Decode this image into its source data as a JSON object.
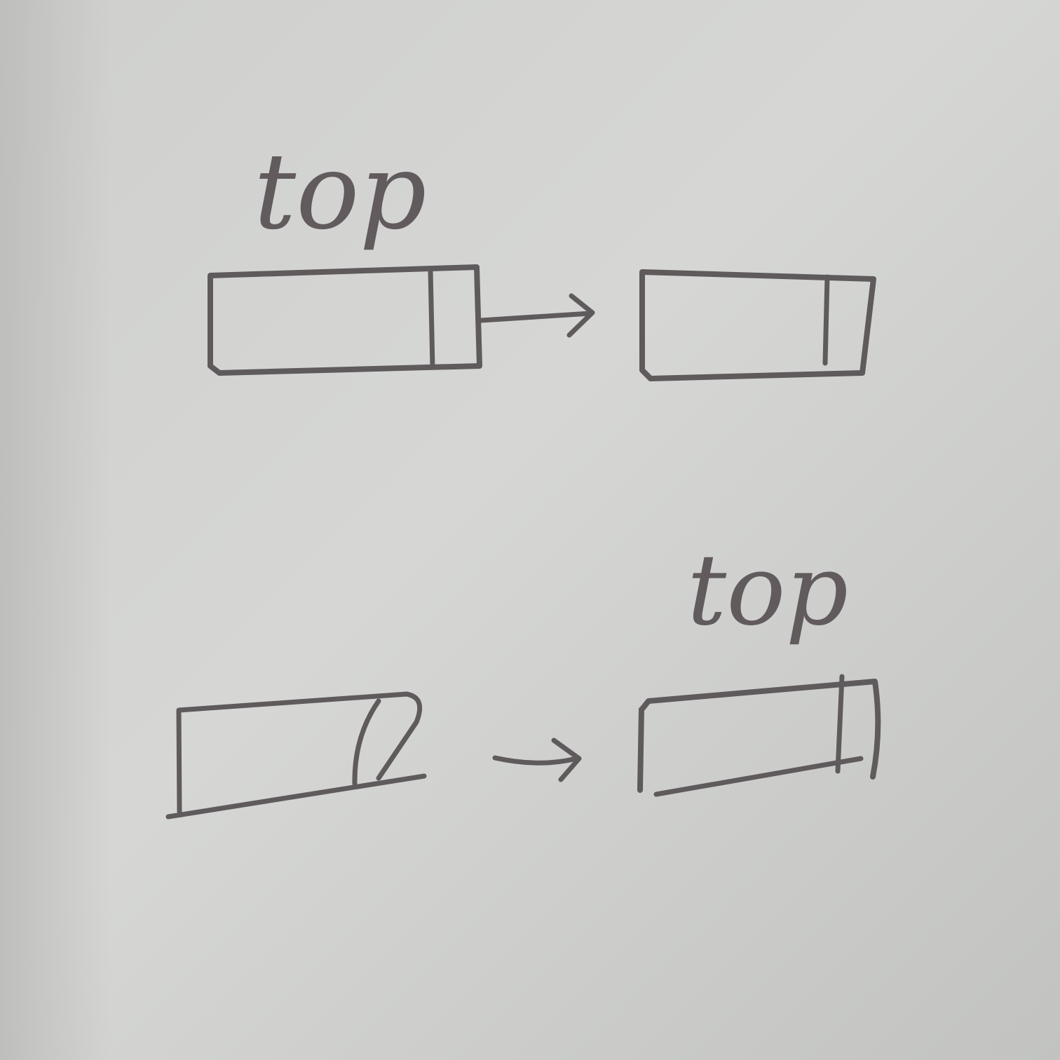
{
  "diagram": {
    "top_row": {
      "top_label": "top"
    },
    "bottom_row": {
      "top_label": "top"
    }
  },
  "colors": {
    "paper": "#d2d3d1",
    "ink": "#5f5a5c"
  }
}
